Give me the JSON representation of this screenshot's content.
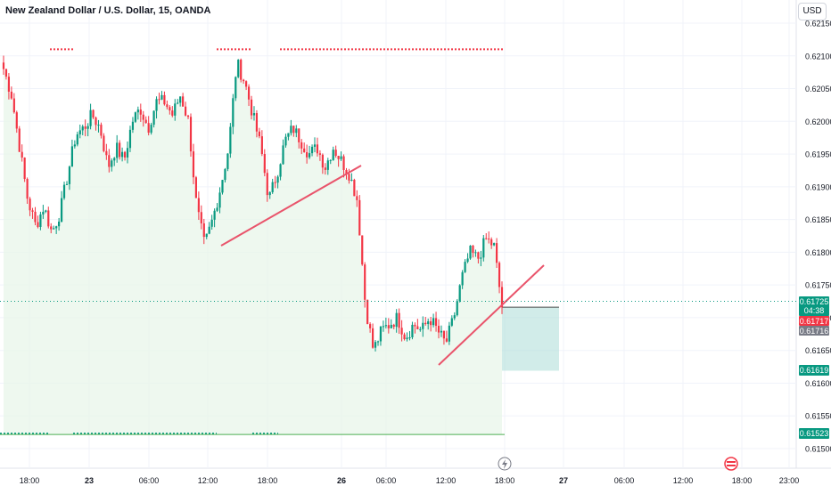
{
  "title": "New Zealand Dollar / U.S. Dollar, 15, OANDA",
  "currency": "USD",
  "chart_data": {
    "type": "candlestick",
    "symbol": "NZDUSD",
    "interval": "15",
    "y_ticks": [
      "0.62150",
      "0.62100",
      "0.62050",
      "0.62000",
      "0.61950",
      "0.61900",
      "0.61850",
      "0.61800",
      "0.61750",
      "0.61700",
      "0.61650",
      "0.61600",
      "0.61550",
      "0.61500"
    ],
    "x_ticks": [
      "18:00",
      "23",
      "06:00",
      "12:00",
      "18:00",
      "26",
      "06:00",
      "12:00",
      "18:00",
      "27",
      "06:00",
      "12:00",
      "18:00",
      "23:00"
    ],
    "ylim": [
      0.61475,
      0.62165
    ],
    "price_close_path": [
      0.6208,
      0.6204,
      0.6196,
      0.6188,
      0.6184,
      0.6187,
      0.6183,
      0.6186,
      0.6192,
      0.6198,
      0.6199,
      0.6201,
      0.6199,
      0.6193,
      0.6196,
      0.6194,
      0.62,
      0.6202,
      0.6199,
      0.6203,
      0.6203,
      0.6201,
      0.6204,
      0.62,
      0.6187,
      0.6181,
      0.6185,
      0.619,
      0.6196,
      0.6209,
      0.6206,
      0.6201,
      0.6196,
      0.6188,
      0.6192,
      0.6197,
      0.6199,
      0.6197,
      0.6195,
      0.6196,
      0.6193,
      0.6196,
      0.6194,
      0.6192,
      0.6188,
      0.6172,
      0.6165,
      0.6168,
      0.6169,
      0.617,
      0.6167,
      0.6169,
      0.6168,
      0.617,
      0.6168,
      0.6166,
      0.617,
      0.6176,
      0.618,
      0.6179,
      0.6182,
      0.6181,
      0.61716
    ],
    "horizontal_levels": [
      {
        "price": 0.6211,
        "color": "#f23645",
        "style": "dotted"
      },
      {
        "price": 0.61523,
        "color": "#089981",
        "style": "dotted"
      }
    ],
    "price_labels": [
      {
        "text": "0.61725",
        "sub": "04:38",
        "color": "#089981"
      },
      {
        "text": "0.61717",
        "color": "#f23645"
      },
      {
        "text": "0.61716",
        "color": "#787b86"
      },
      {
        "text": "0.61619",
        "color": "#089981"
      },
      {
        "text": "0.61523",
        "color": "#089981"
      }
    ],
    "grid": true,
    "up_color": "#089981",
    "down_color": "#f23645",
    "trendline_color": "#e9546b",
    "position_zone_color": "#b2dfdb"
  }
}
